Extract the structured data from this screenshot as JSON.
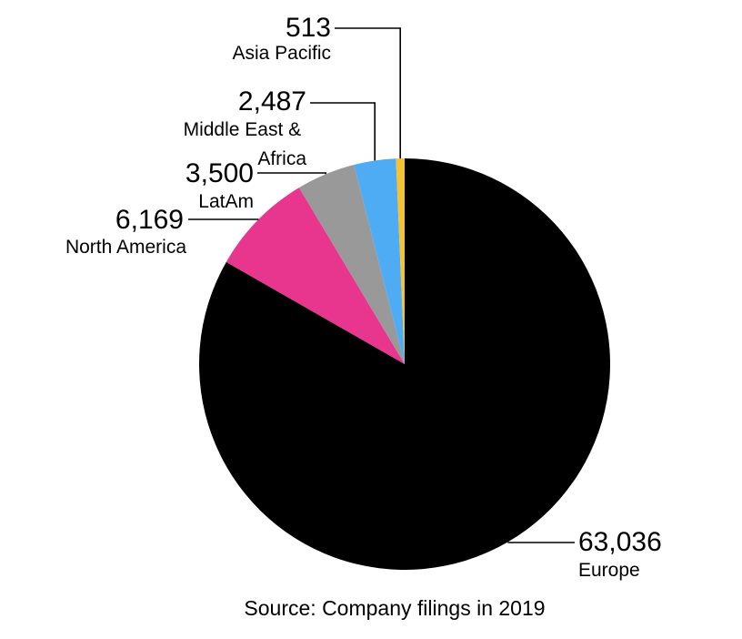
{
  "chart_data": {
    "type": "pie",
    "start_angle_deg": 0,
    "direction": "clockwise",
    "slices": [
      {
        "category": "Europe",
        "value": 63036,
        "value_label": "63,036",
        "color": "#000000"
      },
      {
        "category": "North America",
        "value": 6169,
        "value_label": "6,169",
        "color": "#e8368f"
      },
      {
        "category": "LatAm",
        "value": 3500,
        "value_label": "3,500",
        "color": "#999999"
      },
      {
        "category": "Middle East & Africa",
        "value": 2487,
        "value_label": "2,487",
        "color": "#4eacf5"
      },
      {
        "category": "Asia Pacific",
        "value": 513,
        "value_label": "513",
        "color": "#f5c332"
      }
    ],
    "source": "Source: Company filings in 2019"
  }
}
